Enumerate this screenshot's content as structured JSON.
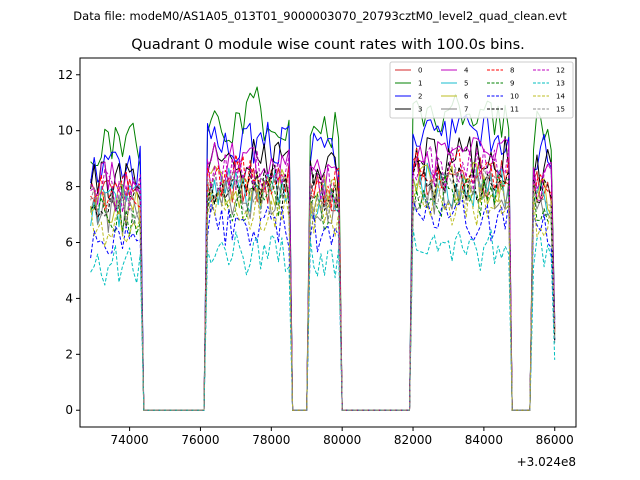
{
  "header": {
    "data_file": "Data file: modeM0/AS1A05_013T01_9000003070_20793cztM0_level2_quad_clean.evt"
  },
  "chart_data": {
    "type": "line",
    "title": "Quadrant 0 module wise count rates with 100.0s bins.",
    "xlabel": "",
    "ylabel": "",
    "x_offset_label": "+3.024e8",
    "xlim": [
      72600,
      86600
    ],
    "ylim": [
      -0.6,
      12.6
    ],
    "xticks": [
      74000,
      76000,
      78000,
      80000,
      82000,
      84000,
      86000
    ],
    "xtick_labels": [
      "74000",
      "76000",
      "78000",
      "80000",
      "82000",
      "84000",
      "86000"
    ],
    "yticks": [
      0,
      2,
      4,
      6,
      8,
      10,
      12
    ],
    "ytick_labels": [
      "0",
      "2",
      "4",
      "6",
      "8",
      "10",
      "12"
    ],
    "legend_position": "top-right",
    "legend_columns": 4,
    "segments": [
      {
        "start": 72900,
        "end": 74300,
        "edge_end": 74400
      },
      {
        "start": 76200,
        "end": 78500,
        "edge_start": 76100,
        "edge_end": 78600
      },
      {
        "start": 79100,
        "end": 79900,
        "edge_start": 79000,
        "edge_end": 80000
      },
      {
        "start": 82000,
        "end": 84700,
        "edge_start": 81900,
        "edge_end": 84800
      },
      {
        "start": 85400,
        "end": 86000,
        "edge_start": 85300
      }
    ],
    "series": [
      {
        "name": "0",
        "color": "#d62728",
        "dash": "solid",
        "level": 8.2
      },
      {
        "name": "1",
        "color": "#008000",
        "dash": "solid",
        "level": 10.3
      },
      {
        "name": "2",
        "color": "#0000ff",
        "dash": "solid",
        "level": 9.6
      },
      {
        "name": "3",
        "color": "#000000",
        "dash": "solid",
        "level": 8.9
      },
      {
        "name": "4",
        "color": "#bf00bf",
        "dash": "solid",
        "level": 8.8
      },
      {
        "name": "5",
        "color": "#17becf",
        "dash": "solid",
        "level": 7.9
      },
      {
        "name": "6",
        "color": "#bcbd22",
        "dash": "solid",
        "level": 8.0
      },
      {
        "name": "7",
        "color": "#7f7f7f",
        "dash": "solid",
        "level": 7.6
      },
      {
        "name": "8",
        "color": "#ff0000",
        "dash": "dashed",
        "level": 8.4
      },
      {
        "name": "9",
        "color": "#008000",
        "dash": "dashed",
        "level": 7.5
      },
      {
        "name": "10",
        "color": "#0000ff",
        "dash": "dashed",
        "level": 6.6
      },
      {
        "name": "11",
        "color": "#000000",
        "dash": "dashed",
        "level": 8.0
      },
      {
        "name": "12",
        "color": "#bf00bf",
        "dash": "dashed",
        "level": 8.5
      },
      {
        "name": "13",
        "color": "#00bfbf",
        "dash": "dashed",
        "level": 5.6
      },
      {
        "name": "14",
        "color": "#bcbd22",
        "dash": "dashed",
        "level": 7.2
      },
      {
        "name": "15",
        "color": "#8c8c8c",
        "dash": "dashed",
        "level": 7.8
      }
    ]
  }
}
